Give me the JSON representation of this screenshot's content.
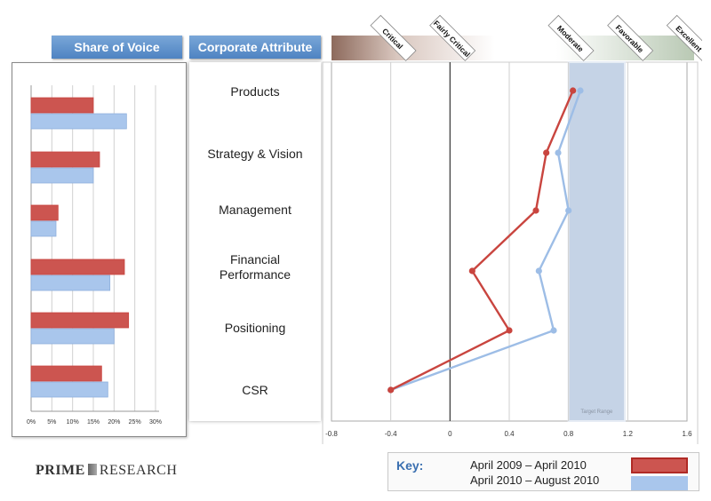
{
  "headers": {
    "share_of_voice": "Share of Voice",
    "corporate_attribute": "Corporate Attribute"
  },
  "scale_labels": [
    "Critical",
    "Fairly Critical",
    "Moderate",
    "Favorable",
    "Excellent"
  ],
  "target_range_label": "Target Range",
  "key": {
    "title": "Key:",
    "entries": [
      {
        "label": "April 2009 – April 2010",
        "color": "#c9453f"
      },
      {
        "label": "April 2010 – August 2010",
        "color": "#9dbde6"
      }
    ]
  },
  "logo": {
    "left": "PRIME",
    "right": "RESEARCH"
  },
  "colors": {
    "series1": "#c9453f",
    "series1_fill": "#cc5550",
    "series2": "#9dbde6",
    "series2_fill": "#a9c6ec",
    "header": "#5b8fcf",
    "target_band": "#c5d3e6"
  },
  "chart_data": [
    {
      "type": "bar",
      "title": "Share of Voice",
      "orientation": "horizontal",
      "categories": [
        "Products",
        "Strategy & Vision",
        "Management",
        "Financial Performance",
        "Positioning",
        "CSR"
      ],
      "series": [
        {
          "name": "April 2009 – April 2010",
          "values": [
            15,
            16.5,
            6.5,
            22.5,
            23.5,
            17
          ]
        },
        {
          "name": "April 2010 – August 2010",
          "values": [
            23,
            15,
            6,
            19,
            20,
            18.5
          ]
        }
      ],
      "tick_labels": [
        "0%",
        "5%",
        "10%",
        "15%",
        "20%",
        "25%",
        "30%"
      ],
      "xlim": [
        0,
        30
      ],
      "grid": true
    },
    {
      "type": "line",
      "title": "Corporate Attribute",
      "categories": [
        "Products",
        "Strategy & Vision",
        "Management",
        "Financial Performance",
        "Positioning",
        "CSR"
      ],
      "series": [
        {
          "name": "April 2009 – April 2010",
          "values": [
            0.83,
            0.65,
            0.58,
            0.15,
            0.4,
            -0.4
          ]
        },
        {
          "name": "April 2010 – August 2010",
          "values": [
            0.88,
            0.73,
            0.8,
            0.6,
            0.7,
            -0.4
          ]
        }
      ],
      "tick_labels": [
        "-0.8",
        "-0.4",
        "0",
        "0.4",
        "0.8",
        "1.2",
        "1.6"
      ],
      "xlim": [
        -0.8,
        1.6
      ],
      "target_range": [
        0.8,
        1.18
      ],
      "grid": true
    }
  ]
}
